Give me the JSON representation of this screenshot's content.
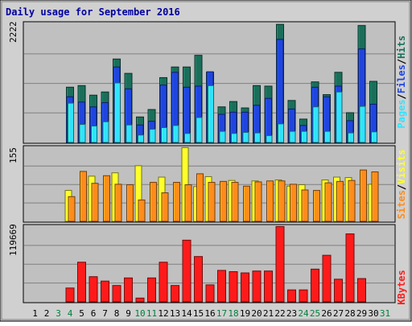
{
  "chart_data": {
    "type": "bar",
    "title": "Daily usage for September 2016",
    "categories": [
      "1",
      "2",
      "3",
      "4",
      "5",
      "6",
      "7",
      "8",
      "9",
      "10",
      "11",
      "12",
      "13",
      "14",
      "15",
      "16",
      "17",
      "18",
      "19",
      "20",
      "21",
      "22",
      "23",
      "24",
      "25",
      "26",
      "27",
      "28",
      "29",
      "30",
      "31"
    ],
    "weekend_days": [
      "3",
      "4",
      "10",
      "11",
      "17",
      "18",
      "24",
      "25",
      "31"
    ],
    "colors": {
      "hits": "#1a6f5a",
      "files": "#1f45e0",
      "pages": "#30e3ff",
      "visits": "#ffff2a",
      "sites": "#ff8c1a",
      "kbytes": "#ff1a1a",
      "title": "#0000a0",
      "weekend_label": "#00803c",
      "plot_bg": "#c0c0c0",
      "frame_bg": "#d0d0d0"
    },
    "panels": [
      {
        "id": "hits_files_pages",
        "max_label": "2222",
        "ymax": 2222,
        "legend": [
          "Pages",
          "/",
          "Files",
          "/",
          "Hits"
        ],
        "legend_color_keys": [
          "pages",
          "sep",
          "files",
          "sep",
          "hits"
        ],
        "series": [
          {
            "name": "Hits",
            "color_key": "hits",
            "values": [
              0,
              0,
              0,
              1040,
              1070,
              890,
              950,
              1570,
              1300,
              480,
              620,
              1220,
              1420,
              1420,
              1640,
              1320,
              670,
              770,
              650,
              1070,
              1060,
              2222,
              790,
              440,
              1140,
              900,
              1320,
              560,
              2200,
              1150,
              0
            ]
          },
          {
            "name": "Files",
            "color_key": "files",
            "values": [
              0,
              0,
              0,
              860,
              760,
              670,
              750,
              1420,
              1010,
              330,
              400,
              1080,
              1320,
              1040,
              1060,
              1330,
              530,
              570,
              570,
              700,
              830,
              1940,
              630,
              320,
              1040,
              860,
              1060,
              410,
              1760,
              720,
              0
            ]
          },
          {
            "name": "Pages",
            "color_key": "pages",
            "values": [
              0,
              0,
              0,
              740,
              340,
              310,
              390,
              1120,
              330,
              140,
              250,
              280,
              320,
              170,
              470,
              1070,
              210,
              170,
              190,
              180,
              130,
              350,
              210,
              210,
              670,
              210,
              950,
              180,
              680,
              200,
              0
            ]
          }
        ]
      },
      {
        "id": "visits_sites",
        "max_label": "155",
        "ymax": 155,
        "legend": [
          "Sites",
          "/",
          "Visits"
        ],
        "legend_color_keys": [
          "sites",
          "sep",
          "visits"
        ],
        "series": [
          {
            "name": "Visits",
            "color_key": "visits",
            "values": [
              0,
              0,
              0,
              65,
              0,
              95,
              0,
              102,
              0,
              117,
              0,
              93,
              0,
              155,
              73,
              94,
              0,
              86,
              0,
              85,
              0,
              87,
              74,
              77,
              0,
              87,
              93,
              92,
              0,
              78,
              0
            ]
          },
          {
            "name": "Sites",
            "color_key": "sites",
            "values": [
              0,
              0,
              0,
              52,
              105,
              80,
              96,
              78,
              77,
              45,
              82,
              60,
              82,
              77,
              100,
              82,
              84,
              82,
              74,
              83,
              85,
              85,
              78,
              66,
              65,
              81,
              84,
              86,
              108,
              104,
              0
            ]
          }
        ]
      },
      {
        "id": "kbytes",
        "max_label": "119669",
        "ymax": 119669,
        "legend": [
          "KBytes"
        ],
        "legend_color_keys": [
          "kbytes"
        ],
        "series": [
          {
            "name": "KBytes",
            "color_key": "kbytes",
            "values": [
              0,
              0,
              0,
              22000,
              63000,
              40000,
              33000,
              26000,
              38000,
              6000,
              38000,
              63000,
              26000,
              98000,
              72000,
              27000,
              50000,
              48000,
              46000,
              49000,
              49000,
              119669,
              19000,
              19000,
              52000,
              74000,
              36000,
              108000,
              37000,
              0,
              0
            ]
          }
        ]
      }
    ]
  }
}
